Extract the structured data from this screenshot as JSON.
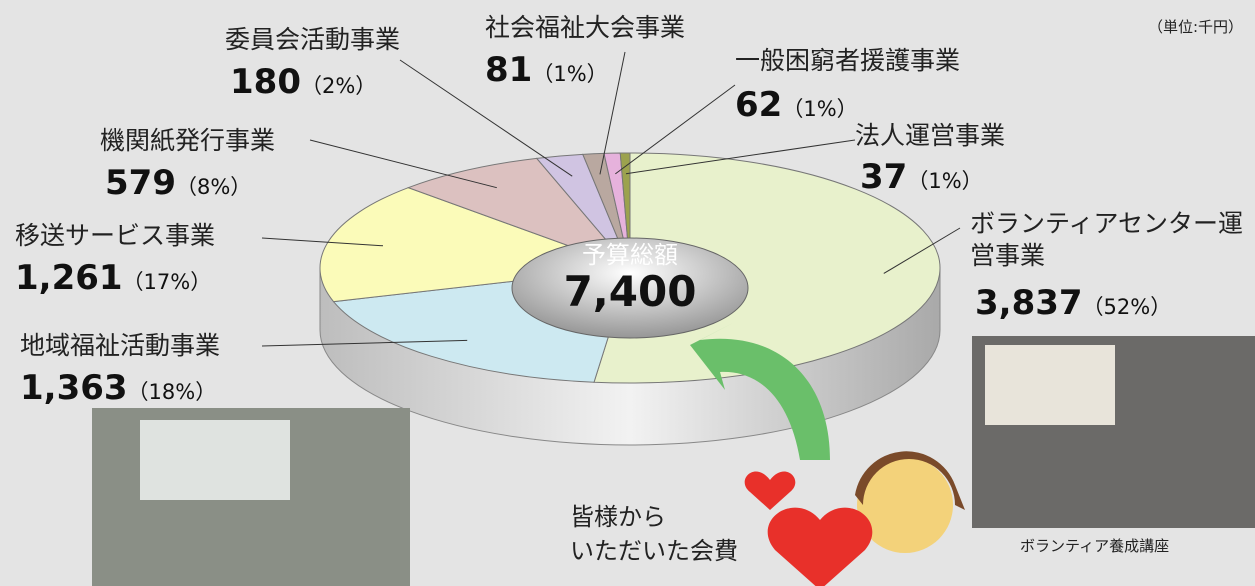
{
  "unit_note": "（単位:千円）",
  "chart_data": {
    "type": "pie",
    "categories": [
      "ボランティアセンター運営事業",
      "地域福祉活動事業",
      "移送サービス事業",
      "機関紙発行事業",
      "委員会活動事業",
      "社会福祉大会事業",
      "一般困窮者援護事業",
      "法人運営事業"
    ],
    "values": [
      3837,
      1363,
      1261,
      579,
      180,
      81,
      62,
      37
    ],
    "value_labels": [
      "3,837",
      "1,363",
      "1,261",
      "579",
      "180",
      "81",
      "62",
      "37"
    ],
    "percent_labels": [
      "（52%）",
      "（18%）",
      "（17%）",
      "（8%）",
      "（2%）",
      "（1%）",
      "（1%）",
      "（1%）"
    ],
    "colors": [
      "#e8f1cc",
      "#cde9f1",
      "#fbfbb9",
      "#dcc1c0",
      "#d0c4e2",
      "#b9a8a0",
      "#e6b2dc",
      "#9ca24e"
    ],
    "center_title": "予算総額",
    "total": 7400,
    "total_label": "7,400"
  },
  "caption_left": [
    "皆様から",
    "いただいた会費"
  ],
  "photo_caption": "ボランティア養成講座"
}
